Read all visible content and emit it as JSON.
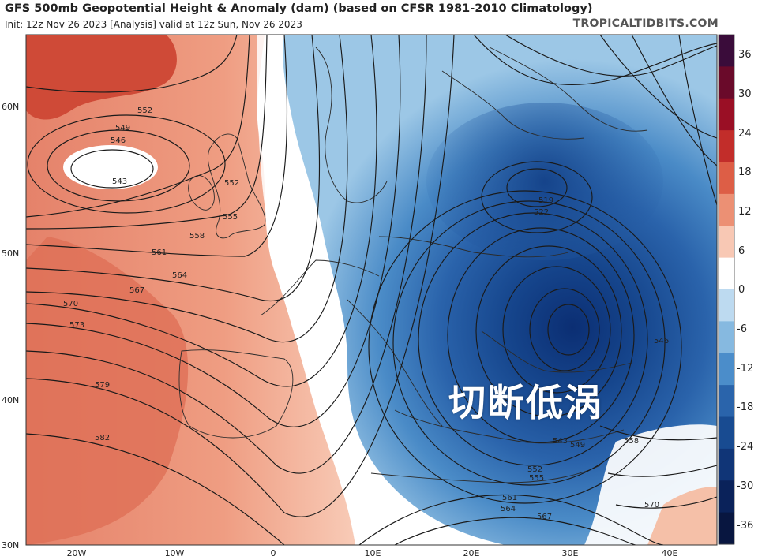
{
  "header": {
    "title": "GFS 500mb Geopotential Height & Anomaly (dam) (based on CFSR 1981-2010 Climatology)",
    "subtitle": "Init: 12z Nov 26 2023   [Analysis]   valid at 12z Sun, Nov 26 2023",
    "brand": "TROPICALTIDBITS.COM"
  },
  "overlay_text": "切断低涡",
  "map": {
    "projection": "cylindrical lat/lon",
    "lon_range": [
      -25,
      47
    ],
    "lat_range": [
      30,
      65
    ],
    "lat_ticks": [
      "60N",
      "50N",
      "40N",
      "30N"
    ],
    "lon_ticks": [
      "20W",
      "10W",
      "0",
      "10E",
      "20E",
      "30E",
      "40E"
    ],
    "contour_labels": [
      "552",
      "549",
      "546",
      "543",
      "552",
      "555",
      "558",
      "561",
      "564",
      "567",
      "570",
      "573",
      "579",
      "582",
      "519",
      "522",
      "546",
      "549",
      "543",
      "552",
      "555",
      "558",
      "561",
      "564",
      "567",
      "570"
    ],
    "colors": {
      "strong_negative": "#0d3a84",
      "negative": "#2f6db8",
      "weak_negative": "#8fbfe0",
      "neutral": "#ffffff",
      "weak_positive": "#f5c3ad",
      "positive": "#e9876a",
      "strong_positive": "#c8392c"
    }
  },
  "colorbar": {
    "labels": [
      "36",
      "30",
      "24",
      "18",
      "12",
      "6",
      "0",
      "-6",
      "-12",
      "-18",
      "-24",
      "-30",
      "-36"
    ],
    "colors": [
      "#3a0c3a",
      "#6a0a2a",
      "#9a0f25",
      "#c22d2a",
      "#dd5e46",
      "#ec9074",
      "#f8c8b4",
      "#ffffff",
      "#bddaf0",
      "#86b9e0",
      "#4b8dca",
      "#2a64ab",
      "#184b91",
      "#103577",
      "#0a225a",
      "#081640"
    ]
  }
}
